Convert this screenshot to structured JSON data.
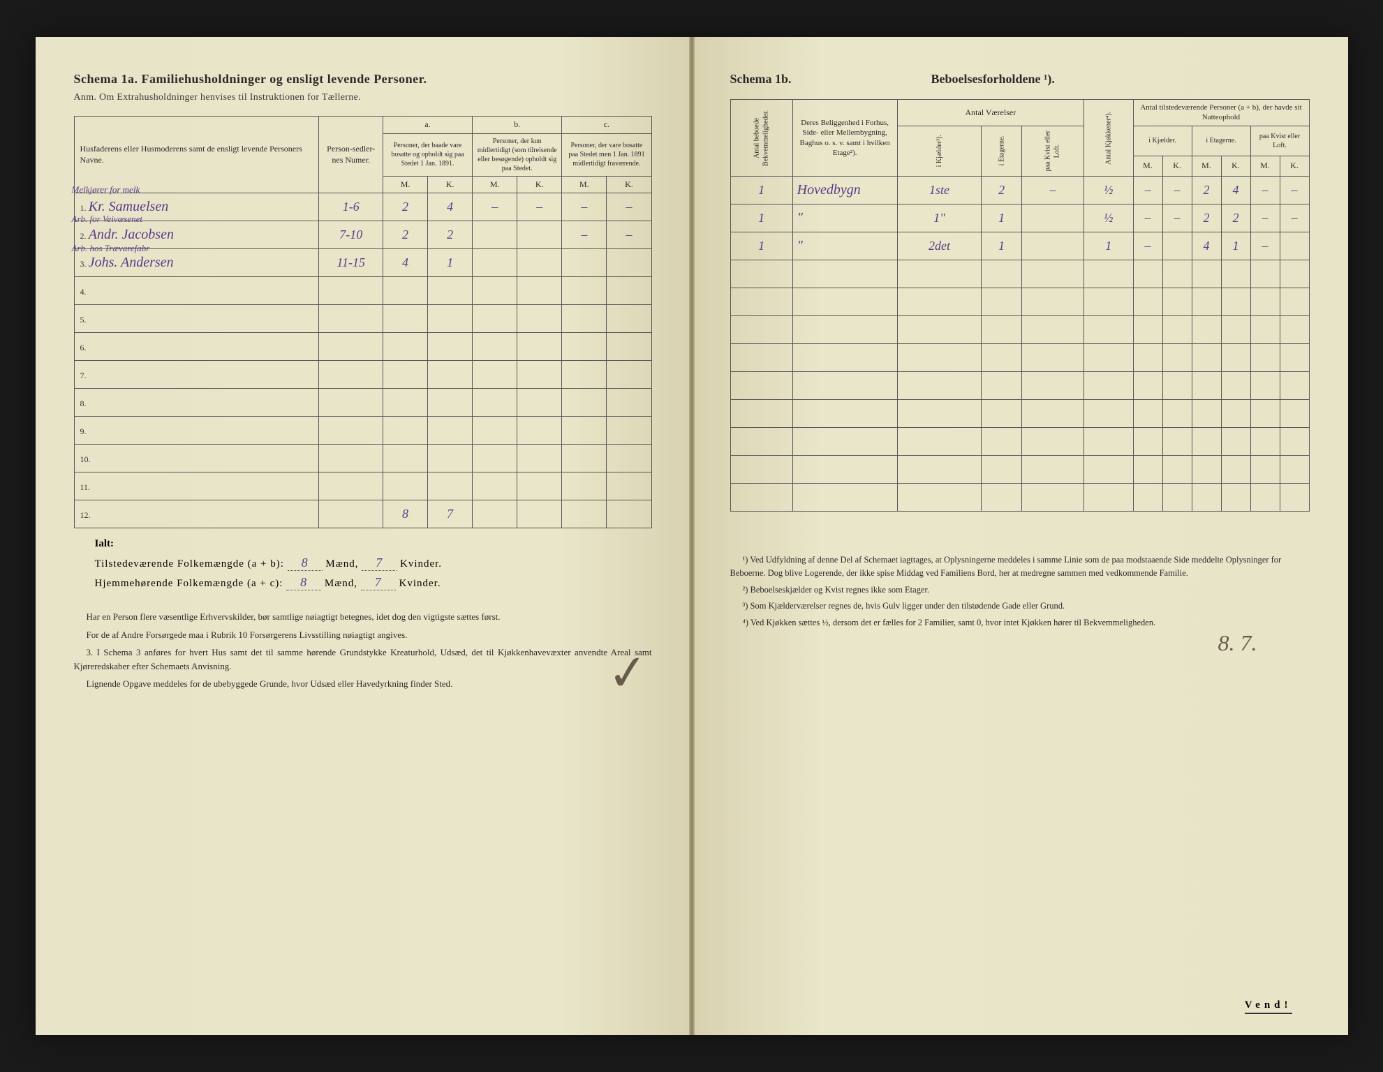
{
  "left": {
    "title": "Schema 1a.  Familiehusholdninger og ensligt levende Personer.",
    "subtitle": "Anm. Om Extrahusholdninger henvises til Instruktionen for Tællerne.",
    "headers": {
      "names": "Husfaderens eller Husmoderens samt de ensligt levende Personers Navne.",
      "sedler": "Person-sedler-nes Numer.",
      "a_label": "a.",
      "a": "Personer, der baade vare bosatte og opholdt sig paa Stedet 1 Jan. 1891.",
      "b_label": "b.",
      "b": "Personer, der kun midlertidigt (som tilreisende eller besøgende) opholdt sig paa Stedet.",
      "c_label": "c.",
      "c": "Personer, der vare bosatte paa Stedet men 1 Jan. 1891 midlertidigt fraværende.",
      "m": "M.",
      "k": "K."
    },
    "rows": [
      {
        "n": "1.",
        "occ": "Melkjører for melk",
        "name": "Kr. Samuelsen",
        "sed": "1-6",
        "am": "2",
        "ak": "4",
        "bm": "–",
        "bk": "–",
        "cm": "–",
        "ck": "–"
      },
      {
        "n": "2.",
        "occ": "Arb. for Veivæsenet",
        "name": "Andr. Jacobsen",
        "sed": "7-10",
        "am": "2",
        "ak": "2",
        "bm": "",
        "bk": "",
        "cm": "–",
        "ck": "–"
      },
      {
        "n": "3.",
        "occ": "Arb. hos Trævarefabr",
        "name": "Johs. Andersen",
        "sed": "11-15",
        "am": "4",
        "ak": "1",
        "bm": "",
        "bk": "",
        "cm": "",
        "ck": ""
      },
      {
        "n": "4."
      },
      {
        "n": "5."
      },
      {
        "n": "6."
      },
      {
        "n": "7."
      },
      {
        "n": "8."
      },
      {
        "n": "9."
      },
      {
        "n": "10."
      },
      {
        "n": "11."
      },
      {
        "n": "12.",
        "am": "8",
        "ak": "7"
      }
    ],
    "ialt": "Ialt:",
    "sum1_label": "Tilstedeværende Folkemængde (a + b):",
    "sum1_m": "8",
    "sum1_k": "7",
    "sum2_label": "Hjemmehørende Folkemængde (a + c):",
    "sum2_m": "8",
    "sum2_k": "7",
    "maend": "Mænd,",
    "kvinder": "Kvinder.",
    "footer": [
      "Har en Person flere væsentlige Erhvervskilder, bør samtlige nøiagtigt betegnes, idet dog den vigtigste sættes først.",
      "For de af Andre Forsørgede maa i Rubrik 10 Forsørgerens Livsstilling nøiagtigt angives.",
      "3. I Schema 3 anføres for hvert Hus samt det til samme hørende Grundstykke Kreaturhold, Udsæd, det til Kjøkkenhavevæxter anvendte Areal samt Kjøreredskaber efter Schemaets Anvisning.",
      "Lignende Opgave meddeles for de ubebyggede Grunde, hvor Udsæd eller Havedyrkning finder Sted."
    ]
  },
  "right": {
    "title_a": "Schema 1b.",
    "title_b": "Beboelsesforholdene ¹).",
    "headers": {
      "bekv": "Antal beboede Bekvemmeligheder.",
      "belig": "Deres Beliggenhed i Forhus, Side- eller Mellembygning, Baghus o. s. v. samt i hvilken Etage²).",
      "vaer": "Antal Værelser",
      "kjael": "i Kjælder³).",
      "etag": "i Etagerne.",
      "kvist": "paa Kvist eller Loft.",
      "kjok": "Antal Kjøkkener⁴).",
      "tilst": "Antal tilstedeværende Personer (a + b), der havde sit Natteophold",
      "ikjael": "i Kjælder.",
      "ietag": "i Etagerne.",
      "pkvist": "paa Kvist eller Loft.",
      "m": "M.",
      "k": "K."
    },
    "rows": [
      {
        "bk": "1",
        "bl": "Hovedbygn",
        "v1": "1ste",
        "v2": "2",
        "v3": "–",
        "kj": "½",
        "km": "–",
        "kk": "–",
        "em": "2",
        "ek": "4",
        "lm": "–",
        "lk": "–"
      },
      {
        "bk": "1",
        "bl": "\"",
        "v1": "1\"",
        "v2": "1",
        "v3": "",
        "kj": "½",
        "km": "–",
        "kk": "–",
        "em": "2",
        "ek": "2",
        "lm": "–",
        "lk": "–"
      },
      {
        "bk": "1",
        "bl": "\"",
        "v1": "2det",
        "v2": "1",
        "v3": "",
        "kj": "1",
        "km": "–",
        "kk": "",
        "em": "4",
        "ek": "1",
        "lm": "–",
        "lk": ""
      },
      {},
      {},
      {},
      {},
      {},
      {},
      {},
      {},
      {},
      " "
    ],
    "total": "8. 7.",
    "footnotes": [
      "¹) Ved Udfyldning af denne Del af Schemaet iagttages, at Oplysningerne meddeles i samme Linie som de paa modstaaende Side meddelte Oplysninger for Beboerne. Dog blive Logerende, der ikke spise Middag ved Familiens Bord, her at medregne sammen med vedkommende Familie.",
      "²) Beboelseskjælder og Kvist regnes ikke som Etager.",
      "³) Som Kjælderværelser regnes de, hvis Gulv ligger under den tilstødende Gade eller Grund.",
      "⁴) Ved Kjøkken sættes ½, dersom det er fælles for 2 Familier, samt 0, hvor intet Kjøkken hører til Bekvemmeligheden."
    ],
    "vend": "Vend!"
  }
}
